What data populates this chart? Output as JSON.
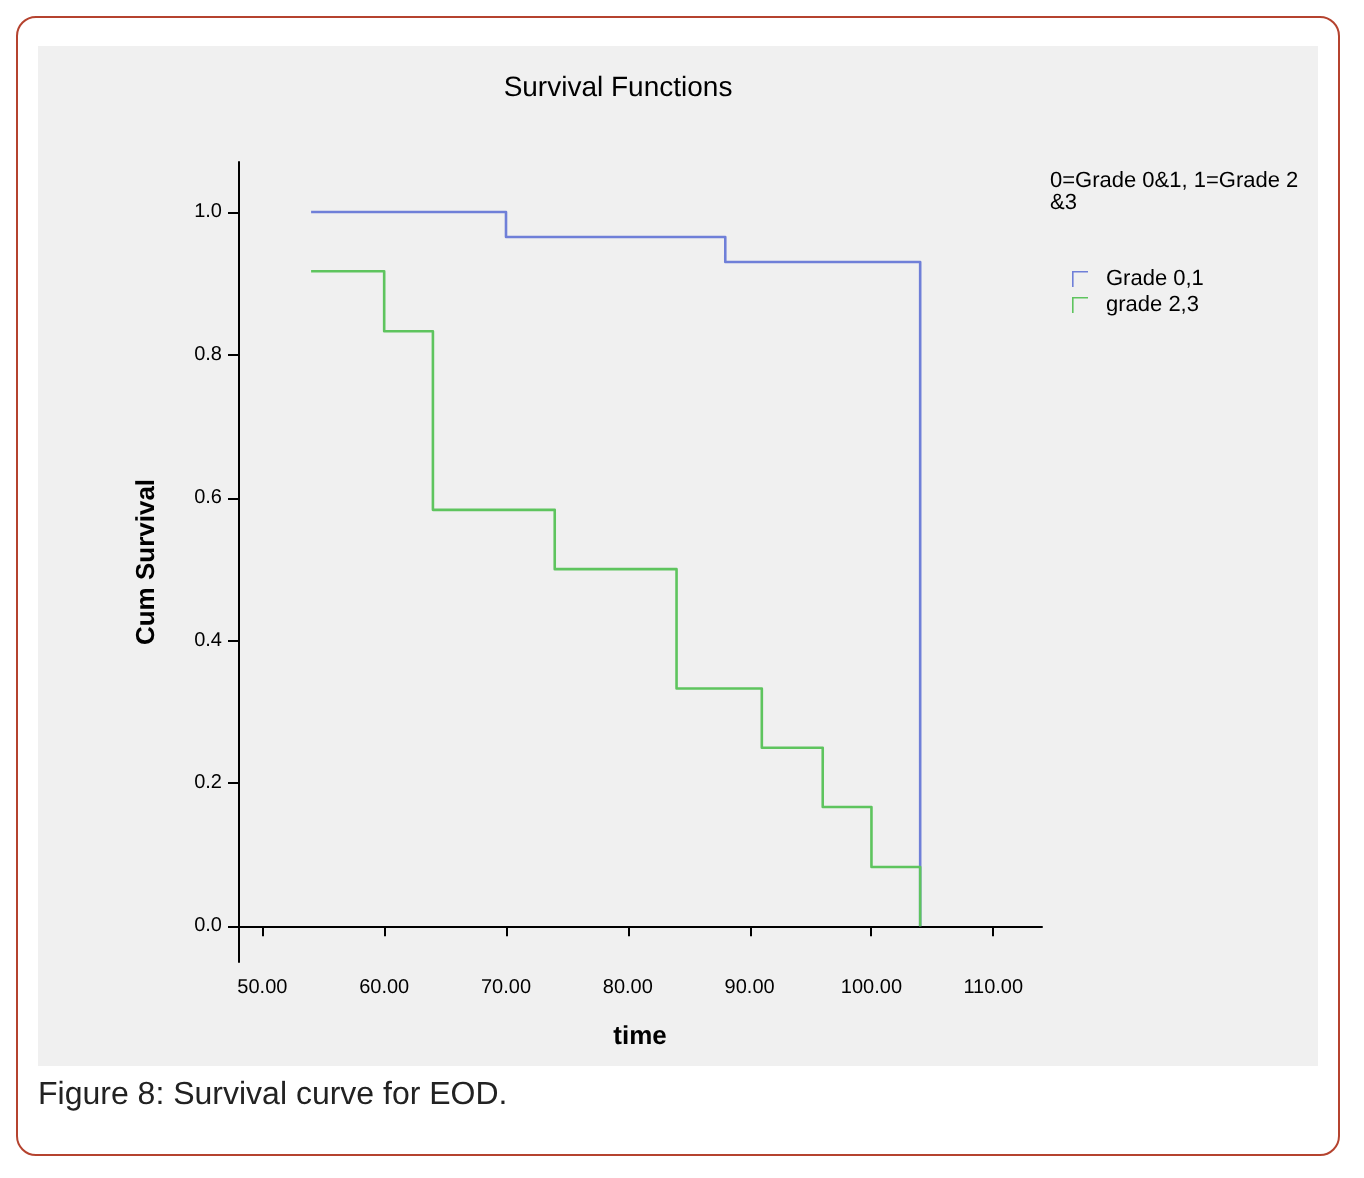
{
  "chart_data": {
    "type": "step",
    "title": "Survival Functions",
    "xlabel": "time",
    "ylabel": "Cum Survival",
    "legend_title": "0=Grade 0&1, 1=Grade 2&3",
    "series": [
      {
        "name": "Grade 0,1",
        "color": "#6f7fd8",
        "x": [
          54,
          70,
          88,
          104
        ],
        "values": [
          1.0,
          0.965,
          0.93,
          0
        ]
      },
      {
        "name": "grade 2,3",
        "color": "#5ec45e",
        "x": [
          54,
          60,
          64,
          74,
          84,
          91,
          96,
          100,
          104
        ],
        "values": [
          0.917,
          0.833,
          0.583,
          0.5,
          0.333,
          0.25,
          0.167,
          0.083,
          0
        ]
      }
    ],
    "xlim": [
      48,
      114
    ],
    "xticks": [
      {
        "value": 50,
        "label": "50.00"
      },
      {
        "value": 60,
        "label": "60.00"
      },
      {
        "value": 70,
        "label": "70.00"
      },
      {
        "value": 80,
        "label": "80.00"
      },
      {
        "value": 90,
        "label": "90.00"
      },
      {
        "value": 100,
        "label": "100.00"
      },
      {
        "value": 110,
        "label": "110.00"
      }
    ],
    "ylim": [
      -0.05,
      1.07
    ],
    "yticks": [
      {
        "value": 0,
        "label": "0.0"
      },
      {
        "value": 0.2,
        "label": "0.2"
      },
      {
        "value": 0.4,
        "label": "0.4"
      },
      {
        "value": 0.6,
        "label": "0.6"
      },
      {
        "value": 0.8,
        "label": "0.8"
      },
      {
        "value": 1.0,
        "label": "1.0"
      }
    ],
    "grid": false,
    "legend": "top right",
    "marker": "none",
    "line_style": "solid",
    "annotations": [
      "Figure 8: Survival curve for EOD."
    ]
  }
}
